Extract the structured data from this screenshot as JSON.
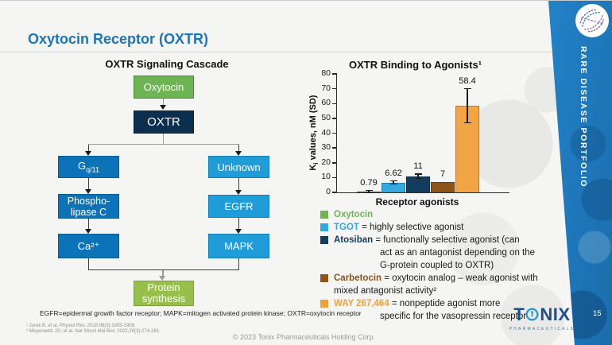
{
  "slide": {
    "title": "Oxytocin Receptor (OXTR)",
    "page_number": "15",
    "side_banner": "RARE DISEASE PORTFOLIO",
    "abbreviations": "EGFR=epidermal growth factor receptor; MAPK=mitogen activated protein kinase; OXTR=oxytocin receptor",
    "footnotes": [
      "¹ Jurek B, et al. Physiol Rev. 2018;98(3):1805-1908.",
      "² Meyerowitz JG, et al. Nat Struct Mol Biol. 2022;29(3):274-281."
    ],
    "copyright": "© 2023 Tonix Pharmaceuticals Holding Corp."
  },
  "flowchart": {
    "title": "OXTR Signaling Cascade",
    "nodes": {
      "oxytocin": "Oxytocin",
      "oxtr": "OXTR",
      "g_main": "G",
      "g_sub": "q/11",
      "unknown": "Unknown",
      "plc": "Phospho-\nlipase C",
      "egfr": "EGFR",
      "ca": "Ca²⁺",
      "mapk": "MAPK",
      "protein": "Protein\nsynthesis"
    }
  },
  "chart_data": {
    "type": "bar",
    "title": "OXTR Binding to Agonists¹",
    "ylabel": "Ki values, nM (SD)",
    "ylabel_parts": {
      "k": "K",
      "sub": "i",
      "rest": " values, nM (SD)"
    },
    "xlabel": "Receptor agonists",
    "ylim": [
      0,
      80
    ],
    "ytick_step": 10,
    "grid": false,
    "categories": [
      "Oxytocin",
      "TGOT",
      "Atosiban",
      "Carbetocin",
      "WAY 267,464"
    ],
    "values": [
      0.79,
      6.62,
      11,
      7,
      58.4
    ],
    "value_labels": [
      "0.79",
      "6.62",
      "11",
      "7",
      "58.4"
    ],
    "bar_colors": [
      "#55803a",
      "#33a9dd",
      "#133c5e",
      "#8c5418",
      "#f3a445"
    ],
    "error_bars": [
      [
        0.4,
        1.3
      ],
      [
        5.6,
        7.7
      ],
      [
        9.5,
        12.4
      ],
      null,
      [
        47,
        70
      ]
    ]
  },
  "legend": {
    "items": [
      {
        "name": "Oxytocin",
        "color": "#6fb354",
        "rest": "",
        "cont": []
      },
      {
        "name": "TGOT",
        "color": "#2fa9de",
        "rest": " = highly selective agonist",
        "cont": []
      },
      {
        "name": "Atosiban",
        "color": "#133c5e",
        "rest": " = functionally selective agonist (can",
        "cont": [
          {
            "t": "act as an antagonist depending on the",
            "i": 58
          },
          {
            "t": "G-protein coupled to OXTR)",
            "i": 58
          }
        ]
      },
      {
        "name": "Carbetocin",
        "color": "#8c5418",
        "rest": " = oxytocin analog – weak agonist with",
        "cont": [
          {
            "t": "mixed antagonist activity²",
            "i": 0
          }
        ]
      },
      {
        "name": "WAY 267,464",
        "color": "#f0a03c",
        "rest": " = nonpeptide agonist more",
        "cont": [
          {
            "t": "specific for the vasopressin receptor",
            "i": 58
          }
        ]
      }
    ]
  },
  "logo": {
    "t": "T",
    "nix": "NIX",
    "sub": "PHARMACEUTICALS"
  },
  "colors": {
    "accent_blue": "#1c75bc",
    "band_blue": "#2383c8",
    "box_dark_navy": "#0d2f4f",
    "box_mid_blue": "#0d73b8",
    "box_light_blue": "#209cd8",
    "box_green": "#6eb354",
    "box_lime_green": "#98be4b"
  }
}
